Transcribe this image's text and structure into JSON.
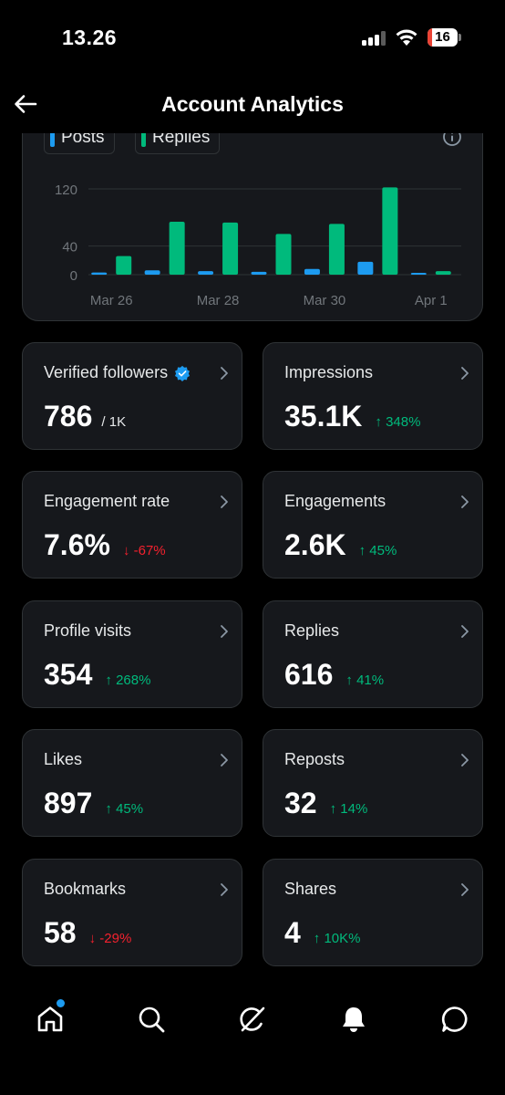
{
  "status_bar": {
    "time": "13.26",
    "battery": "16",
    "battery_level": 0.16
  },
  "header": {
    "title": "Account Analytics"
  },
  "chart_data": {
    "type": "bar",
    "legend": [
      {
        "name": "Posts",
        "color": "#1d9bf0"
      },
      {
        "name": "Replies",
        "color": "#00ba7c"
      }
    ],
    "categories": [
      "Mar 26",
      "Mar 27",
      "Mar 28",
      "Mar 29",
      "Mar 30",
      "Mar 31",
      "Apr 1"
    ],
    "x_tick_labels": [
      "Mar 26",
      "Mar 28",
      "Mar 30",
      "Apr 1"
    ],
    "y_tick_labels": [
      "120",
      "40",
      "0"
    ],
    "y_ticks": [
      120,
      40,
      0
    ],
    "ylim": [
      0,
      120
    ],
    "series": [
      {
        "name": "Posts",
        "color": "#1d9bf0",
        "values": [
          3,
          6,
          5,
          4,
          8,
          18,
          1
        ]
      },
      {
        "name": "Replies",
        "color": "#00ba7c",
        "values": [
          26,
          74,
          73,
          57,
          71,
          122,
          5
        ]
      }
    ],
    "grid": true,
    "legend_position": "top-left"
  },
  "metrics": [
    {
      "label": "Verified followers",
      "value": "786",
      "sub": "/ 1K",
      "verified": true
    },
    {
      "label": "Impressions",
      "value": "35.1K",
      "change": "348%",
      "direction": "up"
    },
    {
      "label": "Engagement rate",
      "value": "7.6%",
      "change": "-67%",
      "direction": "down"
    },
    {
      "label": "Engagements",
      "value": "2.6K",
      "change": "45%",
      "direction": "up"
    },
    {
      "label": "Profile visits",
      "value": "354",
      "change": "268%",
      "direction": "up"
    },
    {
      "label": "Replies",
      "value": "616",
      "change": "41%",
      "direction": "up"
    },
    {
      "label": "Likes",
      "value": "897",
      "change": "45%",
      "direction": "up"
    },
    {
      "label": "Reposts",
      "value": "32",
      "change": "14%",
      "direction": "up"
    },
    {
      "label": "Bookmarks",
      "value": "58",
      "change": "-29%",
      "direction": "down"
    },
    {
      "label": "Shares",
      "value": "4",
      "change": "10K%",
      "direction": "up"
    }
  ],
  "icons": {
    "back": "back-arrow-icon",
    "info": "info-icon",
    "chevron": "chevron-right-icon",
    "verified": "verified-badge-icon"
  },
  "bottom_nav": [
    {
      "name": "home",
      "icon": "home-icon",
      "notification": true
    },
    {
      "name": "search",
      "icon": "search-icon"
    },
    {
      "name": "grok",
      "icon": "grok-icon"
    },
    {
      "name": "notifications",
      "icon": "bell-icon"
    },
    {
      "name": "messages",
      "icon": "message-icon"
    }
  ],
  "colors": {
    "posts": "#1d9bf0",
    "replies": "#00ba7c",
    "up": "#00ba7c",
    "down": "#f4212e",
    "card_bg": "#16181c",
    "border": "#2f3336"
  }
}
